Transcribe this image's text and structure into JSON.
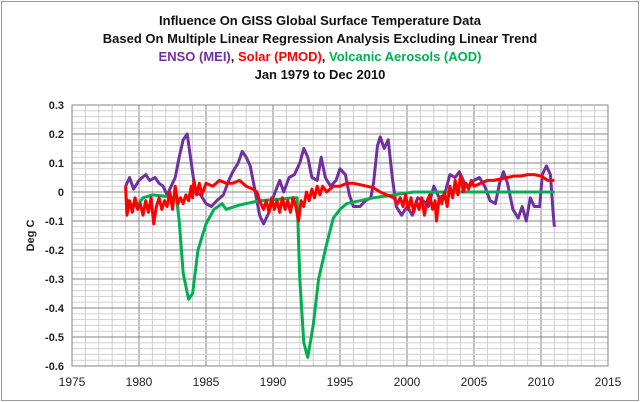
{
  "chart_data": {
    "type": "line",
    "title": "Influence On GISS Global Surface Temperature Data",
    "subtitle": "Based On Multiple Linear Regression Analysis Excluding Linear Trend",
    "series_title_parts": [
      {
        "text": "ENSO (MEI)",
        "color": "#7030a0"
      },
      {
        "text": ", ",
        "color": "#111111"
      },
      {
        "text": "Solar (PMOD)",
        "color": "#ff0000"
      },
      {
        "text": ", ",
        "color": "#111111"
      },
      {
        "text": "Volcanic Aerosols (AOD)",
        "color": "#00b050"
      }
    ],
    "period": "Jan 1979 to Dec 2010",
    "xlabel": "",
    "ylabel": "Deg C",
    "xlim": [
      1975,
      2015
    ],
    "ylim": [
      -0.6,
      0.3
    ],
    "xticks": [
      "1975",
      "1980",
      "1985",
      "1990",
      "1995",
      "2000",
      "2005",
      "2010",
      "2015"
    ],
    "yticks": [
      "0.3",
      "0.2",
      "0.1",
      "0",
      "-0.1",
      "-0.2",
      "-0.3",
      "-0.4",
      "-0.5",
      "-0.6"
    ],
    "grid": true,
    "legend": "none",
    "series": [
      {
        "name": "ENSO (MEI)",
        "color": "#7030a0",
        "points": [
          [
            1979.0,
            0.02
          ],
          [
            1979.3,
            0.05
          ],
          [
            1979.6,
            0.01
          ],
          [
            1980.0,
            0.04
          ],
          [
            1980.5,
            0.06
          ],
          [
            1980.8,
            0.04
          ],
          [
            1981.2,
            0.05
          ],
          [
            1981.5,
            0.03
          ],
          [
            1981.8,
            0.02
          ],
          [
            1982.1,
            -0.01
          ],
          [
            1982.4,
            0.02
          ],
          [
            1982.7,
            0.05
          ],
          [
            1983.0,
            0.12
          ],
          [
            1983.3,
            0.18
          ],
          [
            1983.6,
            0.2
          ],
          [
            1983.9,
            0.1
          ],
          [
            1984.2,
            0.0
          ],
          [
            1984.6,
            -0.01
          ],
          [
            1985.0,
            -0.04
          ],
          [
            1985.4,
            -0.05
          ],
          [
            1985.8,
            -0.03
          ],
          [
            1986.3,
            -0.01
          ],
          [
            1986.7,
            0.04
          ],
          [
            1987.0,
            0.07
          ],
          [
            1987.4,
            0.1
          ],
          [
            1987.7,
            0.14
          ],
          [
            1988.0,
            0.12
          ],
          [
            1988.3,
            0.09
          ],
          [
            1988.6,
            0.02
          ],
          [
            1989.0,
            -0.08
          ],
          [
            1989.3,
            -0.11
          ],
          [
            1989.7,
            -0.07
          ],
          [
            1990.0,
            -0.02
          ],
          [
            1990.5,
            0.04
          ],
          [
            1990.8,
            0.0
          ],
          [
            1991.2,
            0.05
          ],
          [
            1991.6,
            0.06
          ],
          [
            1992.0,
            0.1
          ],
          [
            1992.3,
            0.15
          ],
          [
            1992.6,
            0.12
          ],
          [
            1992.9,
            0.05
          ],
          [
            1993.3,
            0.04
          ],
          [
            1993.6,
            0.12
          ],
          [
            1993.9,
            0.05
          ],
          [
            1994.3,
            0.02
          ],
          [
            1994.7,
            0.04
          ],
          [
            1995.0,
            0.08
          ],
          [
            1995.4,
            0.06
          ],
          [
            1995.7,
            -0.01
          ],
          [
            1996.0,
            -0.05
          ],
          [
            1996.5,
            -0.05
          ],
          [
            1996.9,
            -0.03
          ],
          [
            1997.3,
            -0.02
          ],
          [
            1997.5,
            0.03
          ],
          [
            1997.8,
            0.16
          ],
          [
            1998.0,
            0.19
          ],
          [
            1998.3,
            0.15
          ],
          [
            1998.6,
            0.18
          ],
          [
            1998.9,
            0.05
          ],
          [
            1999.2,
            -0.05
          ],
          [
            1999.6,
            -0.08
          ],
          [
            2000.0,
            -0.05
          ],
          [
            2000.4,
            -0.08
          ],
          [
            2000.8,
            -0.02
          ],
          [
            2001.2,
            -0.03
          ],
          [
            2001.6,
            -0.05
          ],
          [
            2002.0,
            0.02
          ],
          [
            2002.4,
            -0.02
          ],
          [
            2002.8,
            -0.01
          ],
          [
            2003.2,
            0.06
          ],
          [
            2003.6,
            0.05
          ],
          [
            2003.9,
            0.07
          ],
          [
            2004.3,
            0.03
          ],
          [
            2004.7,
            0.02
          ],
          [
            2005.0,
            0.04
          ],
          [
            2005.4,
            0.05
          ],
          [
            2005.8,
            0.02
          ],
          [
            2006.2,
            -0.03
          ],
          [
            2006.6,
            -0.04
          ],
          [
            2006.9,
            0.03
          ],
          [
            2007.2,
            0.07
          ],
          [
            2007.5,
            0.03
          ],
          [
            2007.9,
            -0.06
          ],
          [
            2008.3,
            -0.09
          ],
          [
            2008.6,
            -0.05
          ],
          [
            2008.9,
            -0.1
          ],
          [
            2009.2,
            -0.02
          ],
          [
            2009.5,
            -0.05
          ],
          [
            2009.9,
            -0.05
          ],
          [
            2010.1,
            0.06
          ],
          [
            2010.4,
            0.09
          ],
          [
            2010.7,
            0.06
          ],
          [
            2010.9,
            -0.07
          ],
          [
            2011.0,
            -0.12
          ]
        ]
      },
      {
        "name": "Solar (PMOD)",
        "color": "#ff0000",
        "points": [
          [
            1979.0,
            0.02
          ],
          [
            1979.1,
            -0.08
          ],
          [
            1979.3,
            -0.03
          ],
          [
            1979.5,
            -0.07
          ],
          [
            1979.7,
            -0.02
          ],
          [
            1979.9,
            -0.06
          ],
          [
            1980.1,
            -0.04
          ],
          [
            1980.3,
            -0.08
          ],
          [
            1980.5,
            -0.03
          ],
          [
            1980.7,
            -0.07
          ],
          [
            1980.9,
            -0.02
          ],
          [
            1981.1,
            -0.11
          ],
          [
            1981.3,
            -0.05
          ],
          [
            1981.5,
            -0.02
          ],
          [
            1981.7,
            -0.06
          ],
          [
            1981.9,
            -0.03
          ],
          [
            1982.1,
            -0.05
          ],
          [
            1982.3,
            0.0
          ],
          [
            1982.5,
            -0.06
          ],
          [
            1982.7,
            0.02
          ],
          [
            1982.9,
            -0.04
          ],
          [
            1983.1,
            -0.02
          ],
          [
            1983.3,
            -0.04
          ],
          [
            1983.5,
            -0.01
          ],
          [
            1983.7,
            -0.03
          ],
          [
            1983.9,
            0.02
          ],
          [
            1984.0,
            -0.02
          ],
          [
            1984.1,
            0.04
          ],
          [
            1984.3,
            -0.01
          ],
          [
            1984.5,
            0.03
          ],
          [
            1984.7,
            -0.01
          ],
          [
            1985.0,
            0.03
          ],
          [
            1985.5,
            0.02
          ],
          [
            1986.0,
            0.04
          ],
          [
            1986.5,
            0.03
          ],
          [
            1987.0,
            0.03
          ],
          [
            1987.5,
            0.04
          ],
          [
            1988.0,
            0.02
          ],
          [
            1988.5,
            0.01
          ],
          [
            1988.8,
            0.0
          ],
          [
            1989.0,
            -0.03
          ],
          [
            1989.3,
            -0.06
          ],
          [
            1989.5,
            -0.03
          ],
          [
            1989.7,
            -0.07
          ],
          [
            1989.9,
            -0.02
          ],
          [
            1990.1,
            -0.06
          ],
          [
            1990.3,
            -0.03
          ],
          [
            1990.5,
            -0.07
          ],
          [
            1990.7,
            -0.02
          ],
          [
            1990.9,
            -0.06
          ],
          [
            1991.1,
            -0.03
          ],
          [
            1991.3,
            -0.07
          ],
          [
            1991.5,
            -0.02
          ],
          [
            1991.7,
            -0.05
          ],
          [
            1991.9,
            -0.1
          ],
          [
            1992.1,
            -0.03
          ],
          [
            1992.3,
            -0.05
          ],
          [
            1992.5,
            0.0
          ],
          [
            1992.7,
            -0.03
          ],
          [
            1992.9,
            0.01
          ],
          [
            1993.1,
            -0.02
          ],
          [
            1993.3,
            0.02
          ],
          [
            1993.5,
            -0.01
          ],
          [
            1993.7,
            0.02
          ],
          [
            1994.0,
            0.0
          ],
          [
            1994.5,
            0.02
          ],
          [
            1995.0,
            0.02
          ],
          [
            1995.5,
            0.03
          ],
          [
            1996.0,
            0.03
          ],
          [
            1996.5,
            0.025
          ],
          [
            1997.0,
            0.02
          ],
          [
            1997.5,
            0.015
          ],
          [
            1998.0,
            0.0
          ],
          [
            1998.5,
            -0.01
          ],
          [
            1999.0,
            -0.02
          ],
          [
            1999.3,
            -0.04
          ],
          [
            1999.5,
            -0.02
          ],
          [
            1999.7,
            -0.05
          ],
          [
            1999.9,
            -0.01
          ],
          [
            2000.1,
            -0.06
          ],
          [
            2000.3,
            -0.02
          ],
          [
            2000.5,
            -0.07
          ],
          [
            2000.7,
            -0.03
          ],
          [
            2000.9,
            -0.06
          ],
          [
            2001.1,
            -0.02
          ],
          [
            2001.3,
            -0.08
          ],
          [
            2001.5,
            -0.03
          ],
          [
            2001.7,
            -0.01
          ],
          [
            2001.9,
            -0.06
          ],
          [
            2002.1,
            -0.03
          ],
          [
            2002.2,
            -0.1
          ],
          [
            2002.4,
            -0.02
          ],
          [
            2002.6,
            -0.04
          ],
          [
            2002.8,
            0.0
          ],
          [
            2003.0,
            -0.05
          ],
          [
            2003.2,
            0.02
          ],
          [
            2003.4,
            -0.02
          ],
          [
            2003.6,
            0.04
          ],
          [
            2003.8,
            -0.01
          ],
          [
            2004.0,
            0.06
          ],
          [
            2004.2,
            0.0
          ],
          [
            2004.4,
            0.03
          ],
          [
            2004.6,
            0.01
          ],
          [
            2004.8,
            0.04
          ],
          [
            2005.0,
            0.02
          ],
          [
            2005.5,
            0.03
          ],
          [
            2006.0,
            0.04
          ],
          [
            2006.5,
            0.04
          ],
          [
            2007.0,
            0.045
          ],
          [
            2007.5,
            0.05
          ],
          [
            2008.0,
            0.055
          ],
          [
            2008.5,
            0.055
          ],
          [
            2009.0,
            0.06
          ],
          [
            2009.5,
            0.06
          ],
          [
            2010.0,
            0.055
          ],
          [
            2010.5,
            0.04
          ],
          [
            2011.0,
            0.04
          ]
        ]
      },
      {
        "name": "Volcanic Aerosols (AOD)",
        "color": "#00b050",
        "points": [
          [
            1979.0,
            -0.02
          ],
          [
            1979.3,
            -0.04
          ],
          [
            1979.8,
            -0.05
          ],
          [
            1980.3,
            -0.02
          ],
          [
            1981.0,
            -0.01
          ],
          [
            1982.0,
            -0.015
          ],
          [
            1982.8,
            -0.02
          ],
          [
            1983.0,
            -0.1
          ],
          [
            1983.3,
            -0.28
          ],
          [
            1983.7,
            -0.37
          ],
          [
            1984.0,
            -0.35
          ],
          [
            1984.4,
            -0.2
          ],
          [
            1985.0,
            -0.11
          ],
          [
            1985.6,
            -0.06
          ],
          [
            1986.2,
            -0.04
          ],
          [
            1986.5,
            -0.06
          ],
          [
            1987.5,
            -0.045
          ],
          [
            1989.0,
            -0.03
          ],
          [
            1990.5,
            -0.025
          ],
          [
            1991.5,
            -0.02
          ],
          [
            1991.8,
            -0.02
          ],
          [
            1992.0,
            -0.3
          ],
          [
            1992.3,
            -0.52
          ],
          [
            1992.6,
            -0.57
          ],
          [
            1993.0,
            -0.46
          ],
          [
            1993.4,
            -0.3
          ],
          [
            1994.0,
            -0.18
          ],
          [
            1994.5,
            -0.09
          ],
          [
            1995.0,
            -0.06
          ],
          [
            1995.5,
            -0.04
          ],
          [
            1996.5,
            -0.03
          ],
          [
            1997.5,
            -0.02
          ],
          [
            1999.0,
            -0.01
          ],
          [
            2000.5,
            0.0
          ],
          [
            2011.0,
            0.0
          ]
        ]
      }
    ]
  }
}
